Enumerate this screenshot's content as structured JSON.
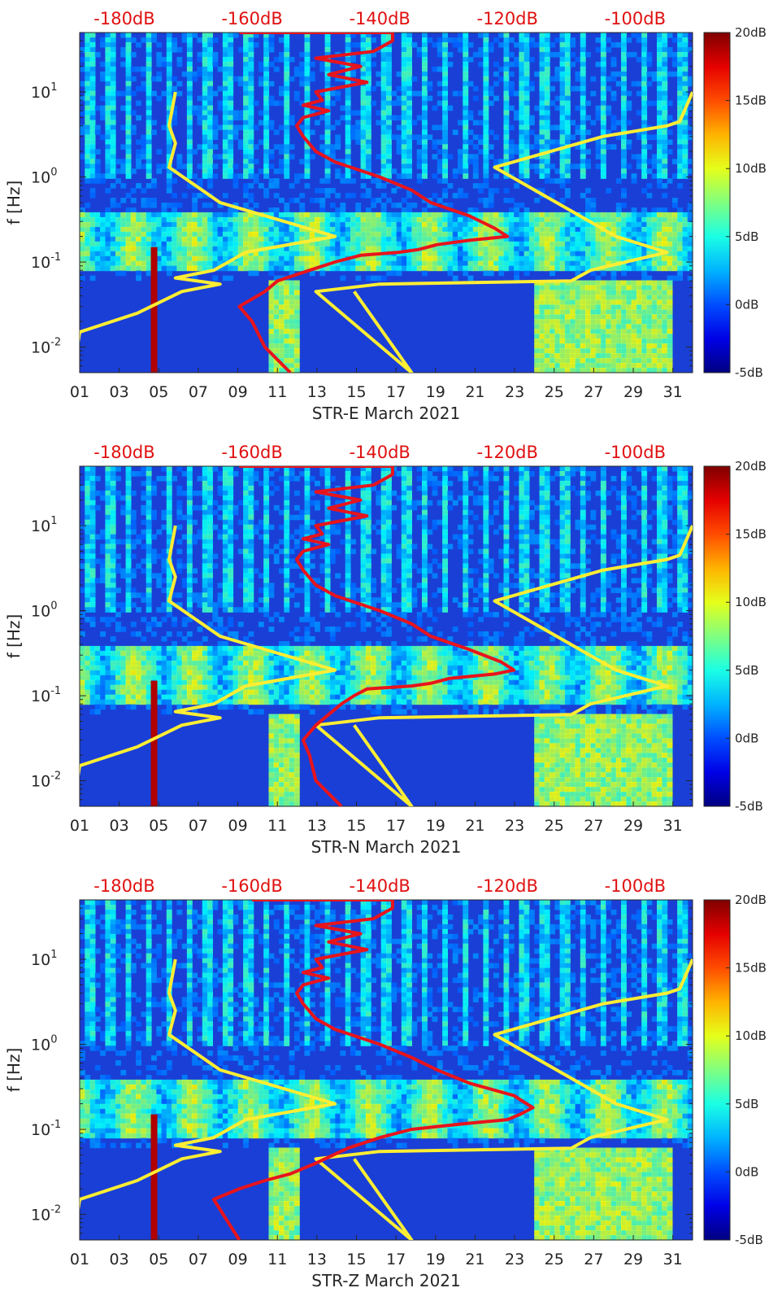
{
  "colors": {
    "psd_curve": "#e8141c",
    "noise_model": "#ffee33",
    "axis": "#262626",
    "top_scale": "#e01010"
  },
  "chart_data": [
    {
      "type": "heatmap",
      "xlabel": "STR-E March 2021",
      "ylabel": "f [Hz]",
      "x_ticks": [
        "01",
        "03",
        "05",
        "07",
        "09",
        "11",
        "13",
        "15",
        "17",
        "19",
        "21",
        "23",
        "25",
        "27",
        "29",
        "31"
      ],
      "x_range_days": [
        1,
        32
      ],
      "y_scale": "log",
      "y_range_hz": [
        0.005,
        50
      ],
      "y_ticks": [
        {
          "base": "10",
          "exp": "-2",
          "value": 0.01
        },
        {
          "base": "10",
          "exp": "-1",
          "value": 0.1
        },
        {
          "base": "10",
          "exp": "0",
          "value": 1
        },
        {
          "base": "10",
          "exp": "1",
          "value": 10
        }
      ],
      "top_scale_labels": [
        "-180dB",
        "-160dB",
        "-140dB",
        "-120dB",
        "-100dB"
      ],
      "top_scale_range_db": [
        -187,
        -91
      ],
      "colorbar": {
        "labels": [
          "20dB",
          "15dB",
          "10dB",
          "5dB",
          "0dB",
          "-5dB"
        ],
        "range_db": [
          -5,
          20
        ],
        "colormap": "jet"
      },
      "grid": false,
      "series": [
        {
          "role": "noise-model-low",
          "x_db": [
            -188,
            -187,
            -178,
            -171,
            -165,
            -172,
            -166,
            -161,
            -147,
            -165,
            -173,
            -172,
            -173,
            -172
          ],
          "y_hz": [
            0.005,
            0.015,
            0.025,
            0.045,
            0.055,
            0.065,
            0.08,
            0.13,
            0.2,
            0.5,
            1.3,
            2.5,
            4,
            10
          ]
        },
        {
          "role": "noise-model-high",
          "x_db": [
            -144,
            -135,
            -150,
            -140,
            -110,
            -107,
            -95,
            -103,
            -122,
            -105,
            -95,
            -93,
            -91
          ],
          "y_hz": [
            0.045,
            0.005,
            0.045,
            0.055,
            0.06,
            0.08,
            0.13,
            0.2,
            1.3,
            3,
            4,
            4.5,
            10
          ]
        },
        {
          "role": "psd-curve",
          "x_db": [
            -154,
            -158,
            -160,
            -162,
            -158,
            -156,
            -151,
            -147,
            -143,
            -137,
            -134,
            -131,
            -126,
            -120,
            -122,
            -126,
            -132,
            -135,
            -140,
            -147,
            -150,
            -152,
            -153,
            -152,
            -148,
            -152,
            -149,
            -150,
            -142,
            -148,
            -143,
            -150,
            -141,
            -138,
            -138,
            -162
          ],
          "y_hz": [
            0.005,
            0.01,
            0.02,
            0.03,
            0.045,
            0.06,
            0.08,
            0.1,
            0.12,
            0.13,
            0.14,
            0.16,
            0.18,
            0.2,
            0.25,
            0.35,
            0.5,
            0.7,
            1,
            1.5,
            2,
            3,
            4,
            5,
            6,
            7,
            8,
            10,
            13,
            16,
            20,
            25,
            30,
            40,
            50,
            50
          ]
        }
      ]
    },
    {
      "type": "heatmap",
      "xlabel": "STR-N March 2021",
      "ylabel": "f [Hz]",
      "x_ticks": [
        "01",
        "03",
        "05",
        "07",
        "09",
        "11",
        "13",
        "15",
        "17",
        "19",
        "21",
        "23",
        "25",
        "27",
        "29",
        "31"
      ],
      "x_range_days": [
        1,
        32
      ],
      "y_scale": "log",
      "y_range_hz": [
        0.005,
        50
      ],
      "y_ticks": [
        {
          "base": "10",
          "exp": "-2",
          "value": 0.01
        },
        {
          "base": "10",
          "exp": "-1",
          "value": 0.1
        },
        {
          "base": "10",
          "exp": "0",
          "value": 1
        },
        {
          "base": "10",
          "exp": "1",
          "value": 10
        }
      ],
      "top_scale_labels": [
        "-180dB",
        "-160dB",
        "-140dB",
        "-120dB",
        "-100dB"
      ],
      "top_scale_range_db": [
        -187,
        -91
      ],
      "colorbar": {
        "labels": [
          "20dB",
          "15dB",
          "10dB",
          "5dB",
          "0dB",
          "-5dB"
        ],
        "range_db": [
          -5,
          20
        ],
        "colormap": "jet"
      },
      "grid": false,
      "series": [
        {
          "role": "noise-model-low",
          "x_db": [
            -188,
            -187,
            -178,
            -171,
            -165,
            -172,
            -166,
            -161,
            -147,
            -165,
            -173,
            -172,
            -173,
            -172
          ],
          "y_hz": [
            0.005,
            0.015,
            0.025,
            0.045,
            0.055,
            0.065,
            0.08,
            0.13,
            0.2,
            0.5,
            1.3,
            2.5,
            4,
            10
          ]
        },
        {
          "role": "noise-model-high",
          "x_db": [
            -144,
            -135,
            -150,
            -140,
            -110,
            -107,
            -95,
            -103,
            -122,
            -105,
            -95,
            -93,
            -91
          ],
          "y_hz": [
            0.045,
            0.005,
            0.045,
            0.055,
            0.06,
            0.08,
            0.13,
            0.2,
            1.3,
            3,
            4,
            4.5,
            10
          ]
        },
        {
          "role": "psd-curve",
          "x_db": [
            -146,
            -150,
            -151,
            -152,
            -150,
            -148,
            -146,
            -144,
            -142,
            -135,
            -132,
            -129,
            -122,
            -119,
            -121,
            -126,
            -132,
            -135,
            -140,
            -147,
            -150,
            -152,
            -153,
            -152,
            -148,
            -152,
            -149,
            -150,
            -142,
            -148,
            -143,
            -150,
            -141,
            -138,
            -138,
            -162
          ],
          "y_hz": [
            0.005,
            0.01,
            0.02,
            0.03,
            0.045,
            0.06,
            0.08,
            0.1,
            0.12,
            0.13,
            0.14,
            0.16,
            0.18,
            0.2,
            0.25,
            0.35,
            0.5,
            0.7,
            1,
            1.5,
            2,
            3,
            4,
            5,
            6,
            7,
            8,
            10,
            13,
            16,
            20,
            25,
            30,
            40,
            50,
            50
          ]
        }
      ]
    },
    {
      "type": "heatmap",
      "xlabel": "STR-Z March 2021",
      "ylabel": "f [Hz]",
      "x_ticks": [
        "01",
        "03",
        "05",
        "07",
        "09",
        "11",
        "13",
        "15",
        "17",
        "19",
        "21",
        "23",
        "25",
        "27",
        "29",
        "31"
      ],
      "x_range_days": [
        1,
        32
      ],
      "y_scale": "log",
      "y_range_hz": [
        0.005,
        50
      ],
      "y_ticks": [
        {
          "base": "10",
          "exp": "-2",
          "value": 0.01
        },
        {
          "base": "10",
          "exp": "-1",
          "value": 0.1
        },
        {
          "base": "10",
          "exp": "0",
          "value": 1
        },
        {
          "base": "10",
          "exp": "1",
          "value": 10
        }
      ],
      "top_scale_labels": [
        "-180dB",
        "-160dB",
        "-140dB",
        "-120dB",
        "-100dB"
      ],
      "top_scale_range_db": [
        -187,
        -91
      ],
      "colorbar": {
        "labels": [
          "20dB",
          "15dB",
          "10dB",
          "5dB",
          "0dB",
          "-5dB"
        ],
        "range_db": [
          -5,
          20
        ],
        "colormap": "jet"
      },
      "grid": false,
      "series": [
        {
          "role": "noise-model-low",
          "x_db": [
            -188,
            -187,
            -178,
            -171,
            -165,
            -172,
            -166,
            -161,
            -147,
            -165,
            -173,
            -172,
            -173,
            -172
          ],
          "y_hz": [
            0.005,
            0.015,
            0.025,
            0.045,
            0.055,
            0.065,
            0.08,
            0.13,
            0.2,
            0.5,
            1.3,
            2.5,
            4,
            10
          ]
        },
        {
          "role": "noise-model-high",
          "x_db": [
            -144,
            -135,
            -150,
            -140,
            -110,
            -107,
            -95,
            -103,
            -122,
            -105,
            -95,
            -93,
            -91
          ],
          "y_hz": [
            0.045,
            0.005,
            0.045,
            0.055,
            0.06,
            0.08,
            0.13,
            0.2,
            1.3,
            3,
            4,
            4.5,
            10
          ]
        },
        {
          "role": "psd-curve",
          "x_db": [
            -162,
            -166,
            -162,
            -158,
            -154,
            -150,
            -145,
            -140,
            -135,
            -130,
            -125,
            -120,
            -118,
            -116,
            -119,
            -126,
            -131,
            -135,
            -140,
            -147,
            -150,
            -152,
            -153,
            -152,
            -148,
            -152,
            -149,
            -150,
            -142,
            -148,
            -143,
            -150,
            -141,
            -138,
            -138,
            -160
          ],
          "y_hz": [
            0.005,
            0.015,
            0.02,
            0.025,
            0.03,
            0.04,
            0.06,
            0.08,
            0.1,
            0.11,
            0.12,
            0.13,
            0.15,
            0.18,
            0.25,
            0.35,
            0.5,
            0.7,
            1,
            1.5,
            2,
            3,
            4,
            5,
            6,
            7,
            8,
            10,
            13,
            16,
            20,
            25,
            30,
            40,
            50,
            50
          ]
        }
      ]
    }
  ]
}
